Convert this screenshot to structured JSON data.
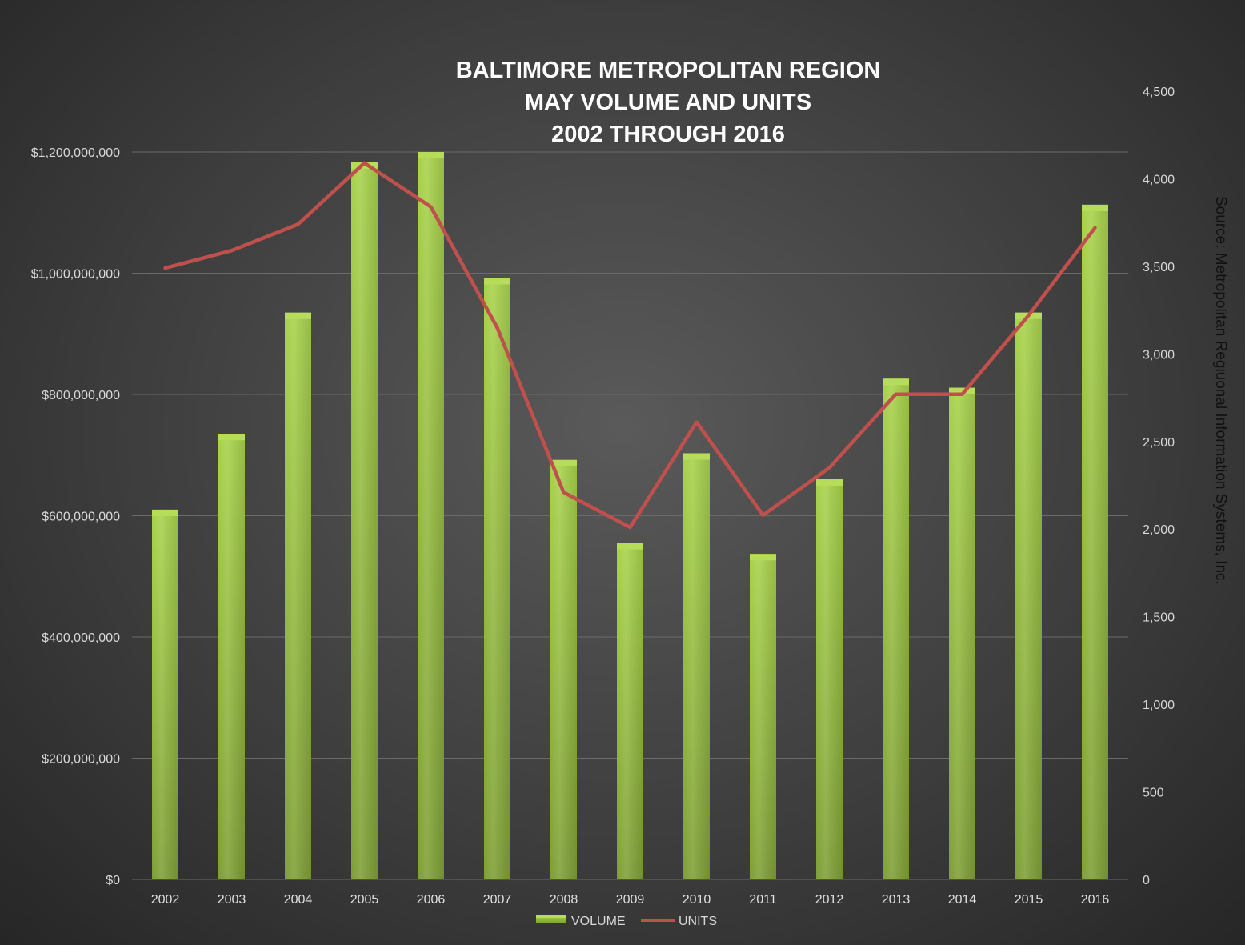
{
  "chart_data": {
    "type": "bar",
    "title": [
      "BALTIMORE METROPOLITAN REGION",
      "MAY VOLUME AND UNITS",
      "2002 THROUGH 2016"
    ],
    "source": "Source:  Metropolitan Regiuonal Information Systems, Inc.",
    "categories": [
      "2002",
      "2003",
      "2004",
      "2005",
      "2006",
      "2007",
      "2008",
      "2009",
      "2010",
      "2011",
      "2012",
      "2013",
      "2014",
      "2015",
      "2016"
    ],
    "series": [
      {
        "name": "VOLUME",
        "type": "bar",
        "axis": "left",
        "values": [
          610000000,
          735000000,
          935000000,
          1183000000,
          1200000000,
          992000000,
          692000000,
          555000000,
          703000000,
          537000000,
          660000000,
          826000000,
          811000000,
          935000000,
          1113000000
        ]
      },
      {
        "name": "UNITS",
        "type": "line",
        "axis": "right",
        "values": [
          3490,
          3590,
          3740,
          4090,
          3840,
          3150,
          2210,
          2010,
          2610,
          2080,
          2350,
          2770,
          2770,
          3220,
          3720
        ]
      }
    ],
    "y_left": {
      "min": 0,
      "max": 1200000000,
      "ticks": [
        0,
        200000000,
        400000000,
        600000000,
        800000000,
        1000000000,
        1200000000
      ],
      "tick_labels": [
        "$0",
        "$200,000,000",
        "$400,000,000",
        "$600,000,000",
        "$800,000,000",
        "$1,000,000,000",
        "$1,200,000,000"
      ]
    },
    "y_right": {
      "min": 0,
      "max": 4500,
      "ticks": [
        0,
        500,
        1000,
        1500,
        2000,
        2500,
        3000,
        3500,
        4000,
        4500
      ],
      "tick_labels": [
        "0",
        "500",
        "1,000",
        "1,500",
        "2,000",
        "2,500",
        "3,000",
        "3,500",
        "4,000",
        "4,500"
      ]
    },
    "grid": true,
    "legend": "bottom",
    "colors": {
      "bar": "#9bc33f",
      "bar_light": "#b6dc5a",
      "bar_dark": "#7a9e32",
      "line": "#c0504d"
    }
  }
}
